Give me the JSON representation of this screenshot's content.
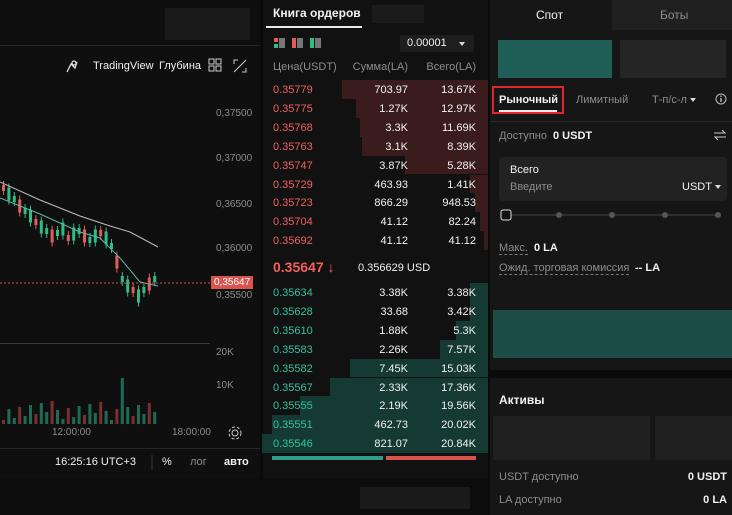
{
  "chart_panel": {
    "toolbar": [
      "TradingView",
      "Глубина"
    ],
    "price_axis": [
      "0,37500",
      "0,37000",
      "0,36500",
      "0,36000",
      "0,35500"
    ],
    "last_price": "0,35647",
    "volume_axis": [
      "20K",
      "10K"
    ],
    "time_axis": [
      "12:00:00",
      "18:00:00"
    ],
    "footer": {
      "time": "16:25:16 UTC+3",
      "percent": "%",
      "log": "лог",
      "auto": "авто"
    }
  },
  "order_book": {
    "title": "Книга ордеров",
    "step": "0.00001",
    "columns": [
      "Цена(USDT)",
      "Сумма(LA)",
      "Всего(LA)"
    ],
    "asks": [
      [
        "0.35779",
        "703.97",
        "13.67K"
      ],
      [
        "0.35775",
        "1.27K",
        "12.97K"
      ],
      [
        "0.35768",
        "3.3K",
        "11.69K"
      ],
      [
        "0.35763",
        "3.1K",
        "8.39K"
      ],
      [
        "0.35747",
        "3.87K",
        "5.28K"
      ],
      [
        "0.35729",
        "463.93",
        "1.41K"
      ],
      [
        "0.35723",
        "866.29",
        "948.53"
      ],
      [
        "0.35704",
        "41.12",
        "82.24"
      ],
      [
        "0.35692",
        "41.12",
        "41.12"
      ]
    ],
    "mid": {
      "price": "0.35647 ↓",
      "usd": "0.356629 USD"
    },
    "bids": [
      [
        "0.35634",
        "3.38K",
        "3.38K"
      ],
      [
        "0.35628",
        "33.68",
        "3.42K"
      ],
      [
        "0.35610",
        "1.88K",
        "5.3K"
      ],
      [
        "0.35583",
        "2.26K",
        "7.57K"
      ],
      [
        "0.35582",
        "7.45K",
        "15.03K"
      ],
      [
        "0.35567",
        "2.33K",
        "17.36K"
      ],
      [
        "0.35555",
        "2.19K",
        "19.56K"
      ],
      [
        "0.35551",
        "462.73",
        "20.02K"
      ],
      [
        "0.35546",
        "821.07",
        "20.84K"
      ]
    ]
  },
  "trade_panel": {
    "tabs": [
      "Спот",
      "Боты"
    ],
    "order_types": [
      "Рыночный",
      "Лимитный",
      "Т-п/с-л"
    ],
    "available": {
      "label": "Доступно",
      "value": "0 USDT"
    },
    "amount": {
      "label": "Всего",
      "placeholder": "Введите",
      "currency": "USDT"
    },
    "max": {
      "label": "Макс.",
      "value": "0 LA"
    },
    "fee": {
      "label": "Ожид. торговая комиссия",
      "value": "-- LA"
    },
    "assets": {
      "title": "Активы",
      "rows": [
        [
          "USDT доступно",
          "0 USDT"
        ],
        [
          "LA доступно",
          "0 LA"
        ]
      ]
    }
  }
}
